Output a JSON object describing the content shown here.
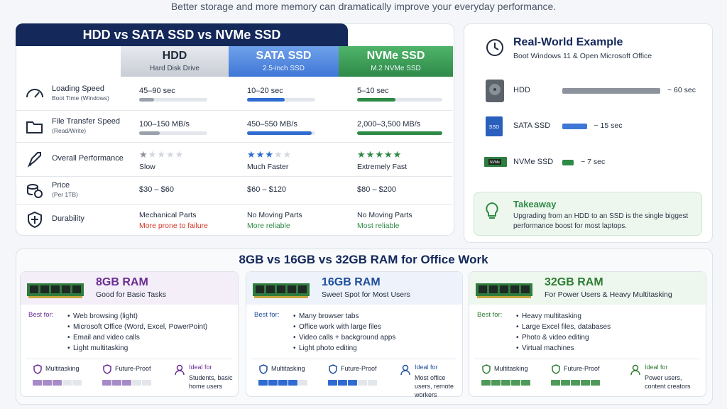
{
  "subtitle": "Better storage and more memory can dramatically improve your everyday performance.",
  "storage": {
    "title": "HDD vs SATA SSD vs NVMe SSD",
    "columns": [
      {
        "name": "HDD",
        "sub": "Hard Disk Drive"
      },
      {
        "name": "SATA SSD",
        "sub": "2.5-inch SSD"
      },
      {
        "name": "NVMe SSD",
        "sub": "M.2 NVMe SSD"
      }
    ],
    "rows": [
      {
        "label": "Loading Speed",
        "sub": "Boot Time (Windows)",
        "cells": [
          {
            "text": "45–90 sec"
          },
          {
            "text": "10–20 sec"
          },
          {
            "text": "5–10 sec"
          }
        ]
      },
      {
        "label": "File Transfer Speed",
        "sub": "(Read/Write)",
        "cells": [
          {
            "text": "100–150 MB/s"
          },
          {
            "text": "450–550 MB/s"
          },
          {
            "text": "2,000–3,500 MB/s"
          }
        ]
      },
      {
        "label": "Overall Performance",
        "cells": [
          {
            "text": "Slow"
          },
          {
            "text": "Much Faster"
          },
          {
            "text": "Extremely Fast"
          }
        ]
      },
      {
        "label": "Price",
        "sub": "(Per 1TB)",
        "cells": [
          {
            "text": "$30 – $60"
          },
          {
            "text": "$60 – $120"
          },
          {
            "text": "$80 – $200"
          }
        ]
      },
      {
        "label": "Durability",
        "cells": [
          {
            "text": "Mechanical Parts",
            "note": "More prone to failure"
          },
          {
            "text": "No Moving Parts",
            "note": "More reliable"
          },
          {
            "text": "No Moving Parts",
            "note": "Most reliable"
          }
        ]
      }
    ]
  },
  "example": {
    "title": "Real-World Example",
    "sub": "Boot Windows 11 & Open Microsoft Office",
    "items": [
      {
        "name": "HDD",
        "value": 60,
        "label": "~ 60 sec"
      },
      {
        "name": "SATA SSD",
        "value": 15,
        "label": "~ 15 sec"
      },
      {
        "name": "NVMe SSD",
        "value": 7,
        "label": "~ 7 sec"
      }
    ],
    "takeaway": {
      "title": "Takeaway",
      "text": "Upgrading from an HDD to an SSD is the single biggest performance boost for most laptops."
    }
  },
  "ram": {
    "title": "8GB vs 16GB vs 32GB RAM for Office Work",
    "cards": [
      {
        "name": "8GB RAM",
        "sub": "Good for Basic Tasks",
        "best_label": "Best for:",
        "items": [
          "Web browsing (light)",
          "Microsoft Office (Word, Excel, PowerPoint)",
          "Email and video calls",
          "Light multitasking"
        ],
        "metrics": [
          "Multitasking",
          "Future-Proof"
        ],
        "ideal_label": "Ideal for",
        "ideal": "Students, basic home users"
      },
      {
        "name": "16GB RAM",
        "sub": "Sweet Spot for Most Users",
        "best_label": "Best for:",
        "items": [
          "Many browser tabs",
          "Office work with large files",
          "Video calls + background apps",
          "Light photo editing"
        ],
        "metrics": [
          "Multitasking",
          "Future-Proof"
        ],
        "ideal_label": "Ideal for",
        "ideal": "Most office users, remote workers"
      },
      {
        "name": "32GB RAM",
        "sub": "For Power Users & Heavy Multitasking",
        "best_label": "Best for:",
        "items": [
          "Heavy multitasking",
          "Large Excel files, databases",
          "Photo & video editing",
          "Virtual machines"
        ],
        "metrics": [
          "Multitasking",
          "Future-Proof"
        ],
        "ideal_label": "Ideal for",
        "ideal": "Power users, content creators"
      }
    ]
  }
}
